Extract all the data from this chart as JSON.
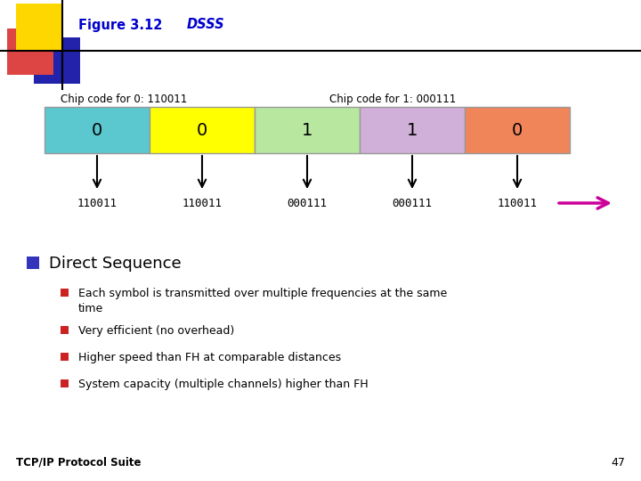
{
  "title_label": "Figure 3.12",
  "title_italic": "DSSS",
  "title_color": "#0000CD",
  "bg_color": "#ffffff",
  "chip_label_0": "Chip code for 0: 110011",
  "chip_label_1": "Chip code for 1: 000111",
  "boxes": [
    {
      "label": "0",
      "color": "#5BC8D0"
    },
    {
      "label": "0",
      "color": "#FFFF00"
    },
    {
      "label": "1",
      "color": "#B8E8A0"
    },
    {
      "label": "1",
      "color": "#D0B0D8"
    },
    {
      "label": "0",
      "color": "#F0855A"
    }
  ],
  "chip_codes": [
    "110011",
    "110011",
    "000111",
    "000111",
    "110011"
  ],
  "direct_sequence_title": "Direct Sequence",
  "bullet_line1a": "Each symbol is transmitted over multiple frequencies at the same",
  "bullet_line1b": "time",
  "bullet_point2": "Very efficient (no overhead)",
  "bullet_point3": "Higher speed than FH at comparable distances",
  "bullet_point4": "System capacity (multiple channels) higher than FH",
  "footer": "TCP/IP Protocol Suite",
  "page_number": "47",
  "deco_yellow": "#FFD700",
  "deco_red": "#DD4444",
  "deco_blue": "#2222AA",
  "arrow_color": "#CC0099"
}
